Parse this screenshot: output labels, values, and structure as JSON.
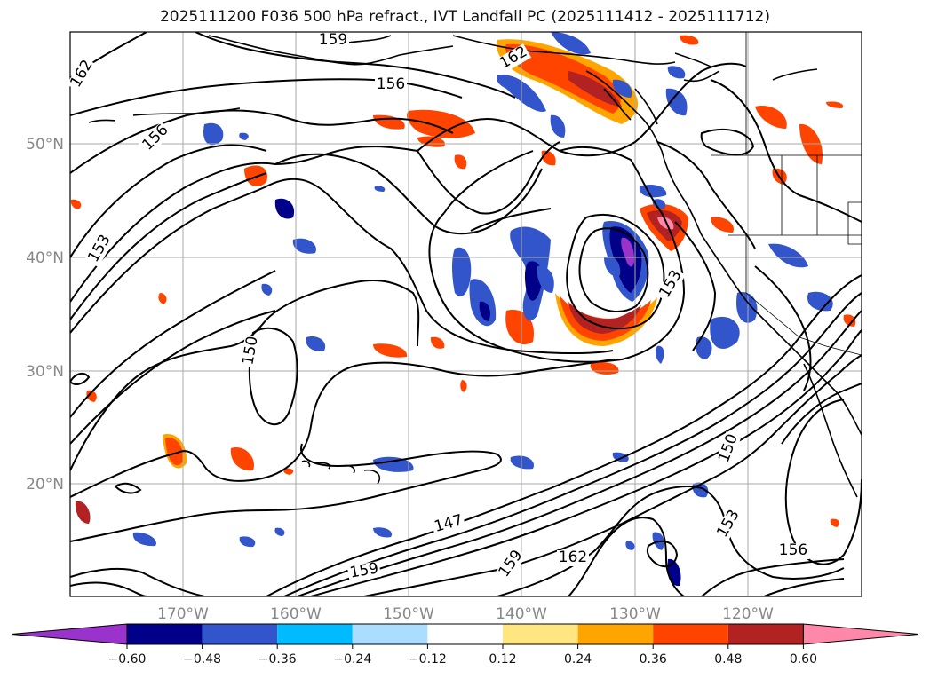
{
  "title": "2025111200 F036 500 hPa refract., IVT Landfall PC (2025111412 - 2025111712)",
  "lat_labels": [
    "50°N",
    "40°N",
    "30°N",
    "20°N"
  ],
  "lon_labels": [
    "170°W",
    "160°W",
    "150°W",
    "140°W",
    "130°W",
    "120°W"
  ],
  "contour_labels": [
    "162",
    "156",
    "153",
    "159",
    "150",
    "147",
    "159",
    "162",
    "156",
    "153",
    "150",
    "159",
    "162",
    "156",
    "153"
  ],
  "colorbar": {
    "tick_labels": [
      "−0.60",
      "−0.48",
      "−0.36",
      "−0.24",
      "−0.12",
      "0.12",
      "0.24",
      "0.36",
      "0.48",
      "0.60"
    ],
    "colors": [
      "#9933cc",
      "#000088",
      "#3355cc",
      "#00bbff",
      "#aaddff",
      "#ffffff",
      "#ffe680",
      "#ffa500",
      "#ff4400",
      "#b22222",
      "#ff88aa"
    ]
  },
  "colors": {
    "contour": "#000000",
    "grid": "#aaaaaa",
    "land": "#000000",
    "neg_light": "#aaddff",
    "neg_mid": "#00bbff",
    "neg_strong": "#3355cc",
    "neg_vstrong": "#000088",
    "pos_light": "#ffe680",
    "pos_mid": "#ffa500",
    "pos_strong": "#ff4400",
    "pos_vstrong": "#b22222",
    "pos_max": "#ff88aa"
  }
}
